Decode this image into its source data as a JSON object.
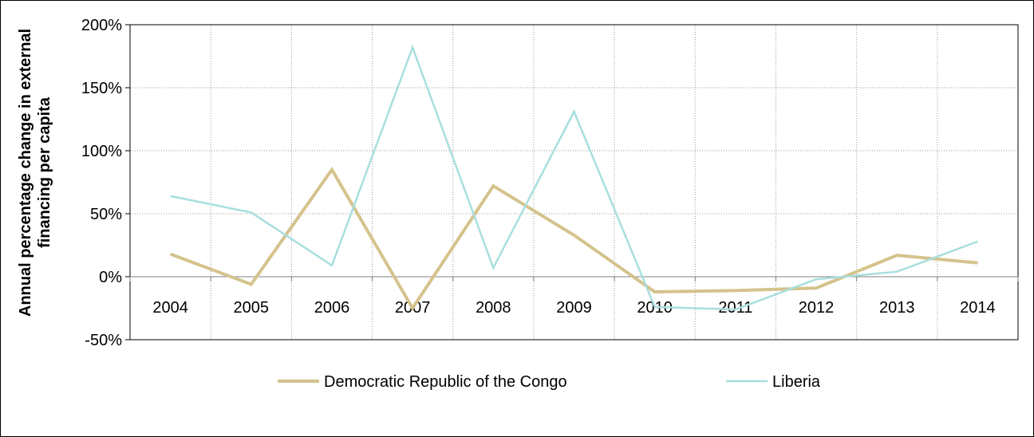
{
  "chart_data": {
    "type": "line",
    "categories": [
      "2004",
      "2005",
      "2006",
      "2007",
      "2008",
      "2009",
      "2010",
      "2011",
      "2012",
      "2013",
      "2014"
    ],
    "series": [
      {
        "name": "Democratic Republic of the Congo",
        "color": "#D4C38C",
        "values": [
          18,
          -6,
          85,
          -25,
          72,
          33,
          -12,
          -11,
          -9,
          17,
          11
        ]
      },
      {
        "name": "Liberia",
        "color": "#A8DEDE",
        "values": [
          64,
          51,
          9,
          182,
          7,
          131,
          -24,
          -26,
          -2,
          4,
          28
        ]
      }
    ],
    "ylabel_line1": "Annual percentage change in external",
    "ylabel_line2": "financing per capita",
    "ylim": [
      -50,
      200
    ],
    "yticks": [
      "-50%",
      "0%",
      "50%",
      "100%",
      "150%",
      "200%"
    ],
    "ytick_values": [
      -50,
      0,
      50,
      100,
      150,
      200
    ],
    "grid": true,
    "legend": "bottom"
  }
}
